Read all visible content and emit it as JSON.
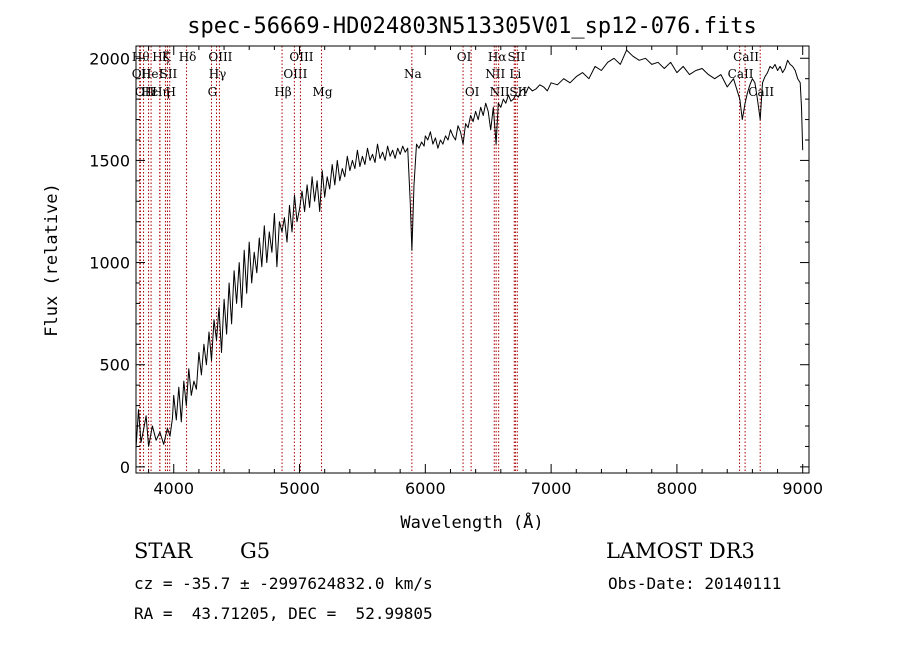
{
  "chart_data": {
    "type": "line",
    "title": "spec-56669-HD024803N513305V01_sp12-076.fits",
    "xlabel": "Wavelength (Å)",
    "ylabel": "Flux (relative)",
    "xlim": [
      3700,
      9050
    ],
    "ylim": [
      -30,
      2060
    ],
    "xticks": [
      4000,
      5000,
      6000,
      7000,
      8000,
      9000
    ],
    "yticks": [
      0,
      500,
      1000,
      1500,
      2000
    ],
    "grid": false,
    "series": [
      {
        "color": "#000000",
        "x": [
          3700,
          3720,
          3740,
          3760,
          3780,
          3800,
          3830,
          3860,
          3890,
          3920,
          3950,
          3970,
          3990,
          4000,
          4020,
          4040,
          4060,
          4080,
          4100,
          4120,
          4140,
          4160,
          4180,
          4200,
          4220,
          4240,
          4260,
          4280,
          4300,
          4320,
          4340,
          4360,
          4380,
          4400,
          4420,
          4440,
          4460,
          4480,
          4500,
          4520,
          4540,
          4560,
          4580,
          4600,
          4620,
          4640,
          4660,
          4680,
          4700,
          4720,
          4740,
          4760,
          4780,
          4800,
          4820,
          4840,
          4861,
          4880,
          4900,
          4920,
          4940,
          4960,
          4980,
          5000,
          5020,
          5040,
          5060,
          5080,
          5100,
          5120,
          5140,
          5160,
          5180,
          5200,
          5220,
          5240,
          5260,
          5280,
          5300,
          5320,
          5340,
          5360,
          5380,
          5400,
          5420,
          5440,
          5460,
          5480,
          5500,
          5520,
          5540,
          5560,
          5580,
          5600,
          5620,
          5640,
          5660,
          5680,
          5700,
          5720,
          5740,
          5760,
          5780,
          5800,
          5820,
          5840,
          5860,
          5880,
          5893,
          5910,
          5930,
          5950,
          5970,
          5990,
          6000,
          6020,
          6040,
          6060,
          6080,
          6100,
          6120,
          6140,
          6160,
          6180,
          6200,
          6220,
          6240,
          6260,
          6280,
          6300,
          6320,
          6340,
          6360,
          6380,
          6400,
          6420,
          6440,
          6460,
          6480,
          6500,
          6520,
          6540,
          6563,
          6580,
          6600,
          6620,
          6640,
          6660,
          6680,
          6700,
          6720,
          6740,
          6760,
          6780,
          6800,
          6820,
          6850,
          6880,
          6910,
          6940,
          6970,
          7000,
          7050,
          7100,
          7150,
          7200,
          7250,
          7300,
          7350,
          7400,
          7450,
          7500,
          7550,
          7600,
          7650,
          7700,
          7750,
          7800,
          7850,
          7900,
          7950,
          8000,
          8050,
          8100,
          8150,
          8200,
          8250,
          8300,
          8350,
          8400,
          8450,
          8500,
          8520,
          8542,
          8560,
          8580,
          8600,
          8620,
          8640,
          8662,
          8680,
          8700,
          8720,
          8740,
          8760,
          8780,
          8800,
          8820,
          8840,
          8860,
          8880,
          8900,
          8920,
          8940,
          8960,
          8980,
          8990,
          9000
        ],
        "y": [
          90,
          280,
          120,
          180,
          250,
          100,
          200,
          130,
          170,
          110,
          190,
          150,
          240,
          350,
          230,
          390,
          220,
          420,
          300,
          480,
          350,
          420,
          380,
          560,
          450,
          600,
          500,
          660,
          520,
          720,
          620,
          780,
          560,
          820,
          650,
          900,
          700,
          960,
          800,
          1000,
          780,
          1060,
          850,
          1100,
          900,
          1050,
          950,
          1120,
          980,
          1180,
          1000,
          1150,
          1050,
          1240,
          980,
          1200,
          1150,
          1220,
          1100,
          1280,
          1150,
          1330,
          1200,
          1260,
          1350,
          1250,
          1380,
          1270,
          1420,
          1300,
          1400,
          1250,
          1450,
          1320,
          1420,
          1360,
          1480,
          1380,
          1500,
          1400,
          1460,
          1420,
          1520,
          1450,
          1500,
          1460,
          1550,
          1470,
          1520,
          1480,
          1560,
          1500,
          1530,
          1490,
          1580,
          1510,
          1540,
          1500,
          1570,
          1520,
          1550,
          1510,
          1560,
          1530,
          1570,
          1540,
          1560,
          1300,
          1060,
          1380,
          1580,
          1560,
          1590,
          1570,
          1620,
          1600,
          1640,
          1580,
          1610,
          1560,
          1600,
          1580,
          1620,
          1600,
          1650,
          1620,
          1600,
          1670,
          1640,
          1580,
          1680,
          1660,
          1720,
          1690,
          1740,
          1700,
          1760,
          1720,
          1780,
          1740,
          1650,
          1760,
          1580,
          1780,
          1760,
          1800,
          1780,
          1820,
          1790,
          1800,
          1820,
          1810,
          1840,
          1850,
          1830,
          1860,
          1840,
          1850,
          1870,
          1860,
          1840,
          1880,
          1870,
          1900,
          1880,
          1910,
          1930,
          1900,
          1960,
          1940,
          1980,
          2000,
          1970,
          2040,
          2010,
          1990,
          2000,
          1970,
          1980,
          1950,
          1980,
          1930,
          1960,
          1920,
          1940,
          1950,
          1920,
          1900,
          1920,
          1860,
          1900,
          1800,
          1700,
          1780,
          1830,
          1870,
          1900,
          1880,
          1800,
          1700,
          1880,
          1910,
          1930,
          1960,
          1950,
          1970,
          1940,
          1960,
          1930,
          1950,
          1990,
          1970,
          1960,
          1940,
          1900,
          1880,
          1760,
          1550
        ]
      }
    ],
    "lines": [
      {
        "x": 3730,
        "label": "Hθ",
        "row": 1
      },
      {
        "x": 3735,
        "label": "OII",
        "row": 2
      },
      {
        "x": 3760,
        "label": "OII",
        "row": 3
      },
      {
        "x": 3800,
        "label": "Hε",
        "row": 3
      },
      {
        "x": 3820,
        "label": "HeI",
        "row": 2
      },
      {
        "x": 3889,
        "label": "Hζ",
        "row": 1
      },
      {
        "x": 3890,
        "label": "Hη",
        "row": 3
      },
      {
        "x": 3934,
        "label": "K",
        "row": 1
      },
      {
        "x": 3968,
        "label": "H",
        "row": 3
      },
      {
        "x": 3950,
        "label": "SII",
        "row": 2
      },
      {
        "x": 4102,
        "label": "Hδ",
        "row": 1
      },
      {
        "x": 4300,
        "label": "G",
        "row": 3
      },
      {
        "x": 4340,
        "label": "Hγ",
        "row": 2
      },
      {
        "x": 4363,
        "label": "OIII",
        "row": 1
      },
      {
        "x": 4861,
        "label": "Hβ",
        "row": 3
      },
      {
        "x": 4959,
        "label": "OIII",
        "row": 2
      },
      {
        "x": 5007,
        "label": "OIII",
        "row": 1
      },
      {
        "x": 5175,
        "label": "Mg",
        "row": 3
      },
      {
        "x": 5893,
        "label": "Na",
        "row": 2
      },
      {
        "x": 6300,
        "label": "OI",
        "row": 1
      },
      {
        "x": 6364,
        "label": "OI",
        "row": 3
      },
      {
        "x": 6548,
        "label": "NII",
        "row": 2
      },
      {
        "x": 6563,
        "label": "Hα",
        "row": 1
      },
      {
        "x": 6583,
        "label": "NII",
        "row": 3
      },
      {
        "x": 6707,
        "label": "Li",
        "row": 2
      },
      {
        "x": 6716,
        "label": "SII",
        "row": 1
      },
      {
        "x": 6731,
        "label": "SII",
        "row": 3
      },
      {
        "x": 8498,
        "label": "CaII",
        "row": 2
      },
      {
        "x": 8542,
        "label": "CaII",
        "row": 1
      },
      {
        "x": 8662,
        "label": "CaII",
        "row": 3
      }
    ],
    "line_color": "#aa0000"
  },
  "info": {
    "class_label": "STAR",
    "subclass": "G5",
    "survey": "LAMOST DR3",
    "cz": "cz = -35.7 ± -2997624832.0 km/s",
    "obsdate": "Obs-Date: 20140111",
    "radec": "RA =  43.71205, DEC =  52.99805"
  }
}
